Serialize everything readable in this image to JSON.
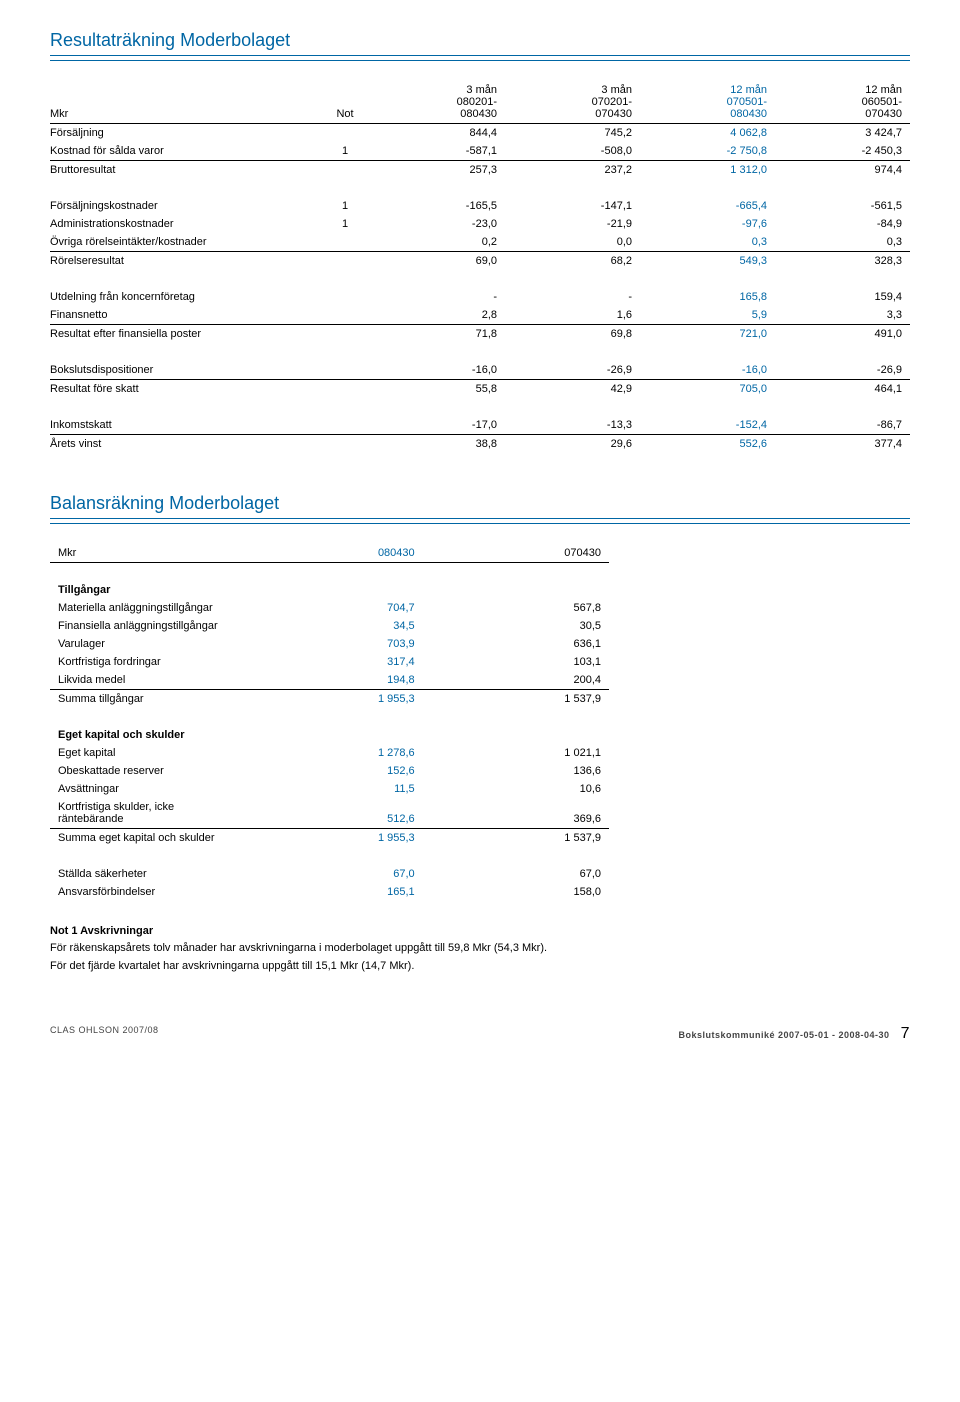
{
  "colors": {
    "accent": "#0066a4",
    "text": "#000000",
    "bg": "#ffffff",
    "rule": "#000000"
  },
  "fonts": {
    "body_pt": 11,
    "title_pt": 18,
    "footer_pt": 9
  },
  "is": {
    "title": "Resultaträkning Moderbolaget",
    "header": {
      "mkr": "Mkr",
      "not": "Not",
      "c": [
        {
          "top": "3 mån",
          "mid": "080201-",
          "bot": "080430"
        },
        {
          "top": "3 mån",
          "mid": "070201-",
          "bot": "070430"
        },
        {
          "top": "12 mån",
          "mid": "070501-",
          "bot": "080430"
        },
        {
          "top": "12 mån",
          "mid": "060501-",
          "bot": "070430"
        }
      ]
    },
    "rows": [
      {
        "label": "Försäljning",
        "not": "",
        "v": [
          "844,4",
          "745,2",
          "4 062,8",
          "3 424,7"
        ]
      },
      {
        "label": "Kostnad för sålda varor",
        "not": "1",
        "v": [
          "-587,1",
          "-508,0",
          "-2 750,8",
          "-2 450,3"
        ],
        "border": true
      },
      {
        "label": "Bruttoresultat",
        "not": "",
        "v": [
          "257,3",
          "237,2",
          "1 312,0",
          "974,4"
        ]
      },
      {
        "spacer": true
      },
      {
        "label": "Försäljningskostnader",
        "not": "1",
        "v": [
          "-165,5",
          "-147,1",
          "-665,4",
          "-561,5"
        ]
      },
      {
        "label": "Administrationskostnader",
        "not": "1",
        "v": [
          "-23,0",
          "-21,9",
          "-97,6",
          "-84,9"
        ]
      },
      {
        "label": "Övriga rörelseintäkter/kostnader",
        "not": "",
        "v": [
          "0,2",
          "0,0",
          "0,3",
          "0,3"
        ],
        "border": true
      },
      {
        "label": "Rörelseresultat",
        "not": "",
        "v": [
          "69,0",
          "68,2",
          "549,3",
          "328,3"
        ]
      },
      {
        "spacer": true
      },
      {
        "label": "Utdelning från koncernföretag",
        "not": "",
        "v": [
          "-",
          "-",
          "165,8",
          "159,4"
        ]
      },
      {
        "label": "Finansnetto",
        "not": "",
        "v": [
          "2,8",
          "1,6",
          "5,9",
          "3,3"
        ],
        "border": true
      },
      {
        "label": "Resultat efter finansiella poster",
        "not": "",
        "v": [
          "71,8",
          "69,8",
          "721,0",
          "491,0"
        ]
      },
      {
        "spacer": true
      },
      {
        "label": "Bokslutsdispositioner",
        "not": "",
        "v": [
          "-16,0",
          "-26,9",
          "-16,0",
          "-26,9"
        ],
        "border": true
      },
      {
        "label": "Resultat före skatt",
        "not": "",
        "v": [
          "55,8",
          "42,9",
          "705,0",
          "464,1"
        ]
      },
      {
        "spacer": true
      },
      {
        "label": "Inkomstskatt",
        "not": "",
        "v": [
          "-17,0",
          "-13,3",
          "-152,4",
          "-86,7"
        ],
        "border": true
      },
      {
        "label": "Årets vinst",
        "not": "",
        "v": [
          "38,8",
          "29,6",
          "552,6",
          "377,4"
        ]
      }
    ]
  },
  "bs": {
    "title": "Balansräkning Moderbolaget",
    "header": {
      "mkr": "Mkr",
      "c": [
        "080430",
        "070430"
      ]
    },
    "groups": [
      {
        "heading": "Tillgångar",
        "rows": [
          {
            "label": "Materiella anläggningstillgångar",
            "v": [
              "704,7",
              "567,8"
            ]
          },
          {
            "label": "Finansiella anläggningstillgångar",
            "v": [
              "34,5",
              "30,5"
            ]
          },
          {
            "label": "Varulager",
            "v": [
              "703,9",
              "636,1"
            ]
          },
          {
            "label": "Kortfristiga fordringar",
            "v": [
              "317,4",
              "103,1"
            ]
          },
          {
            "label": "Likvida medel",
            "v": [
              "194,8",
              "200,4"
            ],
            "border": true
          },
          {
            "label": "Summa tillgångar",
            "v": [
              "1 955,3",
              "1 537,9"
            ]
          }
        ]
      },
      {
        "heading": "Eget kapital och skulder",
        "rows": [
          {
            "label": "Eget kapital",
            "v": [
              "1 278,6",
              "1 021,1"
            ]
          },
          {
            "label": "Obeskattade reserver",
            "v": [
              "152,6",
              "136,6"
            ]
          },
          {
            "label": "Avsättningar",
            "v": [
              "11,5",
              "10,6"
            ]
          },
          {
            "label": "Kortfristiga skulder, icke räntebärande",
            "v": [
              "512,6",
              "369,6"
            ],
            "border": true
          },
          {
            "label": "Summa eget kapital och skulder",
            "v": [
              "1 955,3",
              "1 537,9"
            ]
          }
        ]
      },
      {
        "rows": [
          {
            "label": "Ställda säkerheter",
            "v": [
              "67,0",
              "67,0"
            ]
          },
          {
            "label": "Ansvarsförbindelser",
            "v": [
              "165,1",
              "158,0"
            ]
          }
        ]
      }
    ]
  },
  "note": {
    "title": "Not 1 Avskrivningar",
    "line1": "För räkenskapsårets tolv månader har avskrivningarna i moderbolaget uppgått till 59,8 Mkr (54,3 Mkr).",
    "line2": "För det fjärde kvartalet har avskrivningarna uppgått till 15,1 Mkr (14,7 Mkr)."
  },
  "footer": {
    "left": "CLAS OHLSON 2007/08",
    "right": "Bokslutskommuniké 2007-05-01 - 2008-04-30",
    "page": "7"
  }
}
